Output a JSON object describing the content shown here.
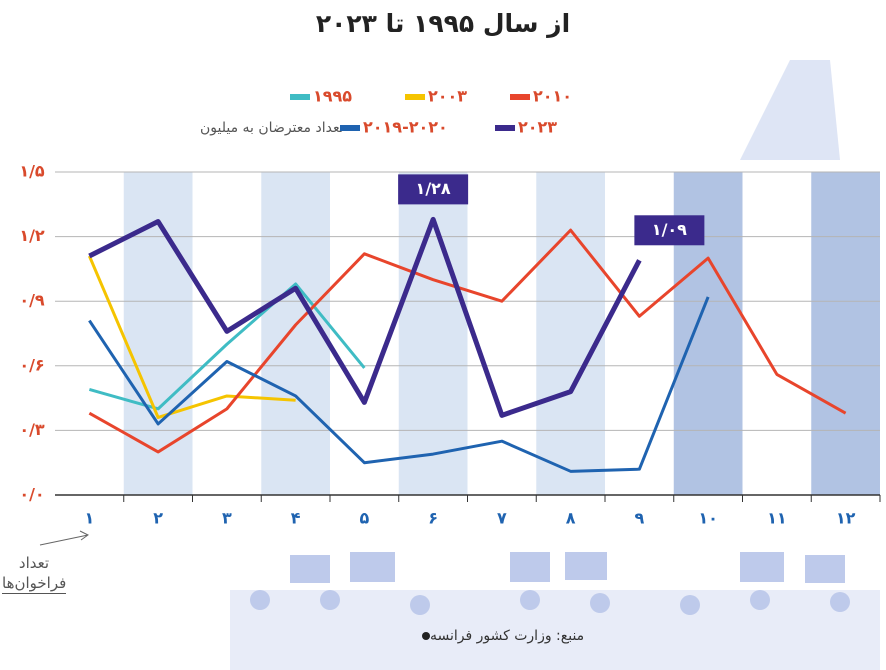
{
  "chart_data": {
    "type": "line",
    "title": "از سال ۱۹۹۵ تا ۲۰۲۳",
    "y_label": "تعداد معترضان به میلیون",
    "x_label": "تعداد فراخوان‌ها",
    "source": "منبع: وزارت کشور فرانسه",
    "categories": [
      "۱",
      "۲",
      "۳",
      "۴",
      "۵",
      "۶",
      "۷",
      "۸",
      "۹",
      "۱۰",
      "۱۱",
      "۱۲"
    ],
    "ylim": [
      0,
      1.5
    ],
    "yticks": [
      {
        "value": 0,
        "label": "۰/۰"
      },
      {
        "value": 0.3,
        "label": "۰/۳"
      },
      {
        "value": 0.6,
        "label": "۰/۶"
      },
      {
        "value": 0.9,
        "label": "۰/۹"
      },
      {
        "value": 1.2,
        "label": "۱/۲"
      },
      {
        "value": 1.5,
        "label": "۱/۵"
      }
    ],
    "grid": true,
    "series": [
      {
        "name": "۱۹۹۵",
        "color": "#3fbcc4",
        "values": [
          0.49,
          0.4,
          0.7,
          0.98,
          0.59,
          null,
          null,
          null,
          null,
          null,
          null,
          null
        ]
      },
      {
        "name": "۲۰۰۳",
        "color": "#f5c400",
        "values": [
          1.11,
          0.36,
          0.46,
          0.44,
          null,
          null,
          null,
          null,
          null,
          null,
          null,
          null
        ]
      },
      {
        "name": "۲۰۱۰",
        "color": "#e8452c",
        "values": [
          0.38,
          0.2,
          0.4,
          0.79,
          1.12,
          1.0,
          0.9,
          1.23,
          0.83,
          1.1,
          0.56,
          0.38
        ]
      },
      {
        "name": "۲۰۱۹-۲۰۲۰",
        "color": "#1f63b0",
        "values": [
          0.81,
          0.33,
          0.62,
          0.46,
          0.15,
          0.19,
          0.25,
          0.11,
          0.12,
          0.92,
          null,
          null
        ]
      },
      {
        "name": "۲۰۲۳",
        "color": "#3b2a8c",
        "values": [
          1.11,
          1.27,
          0.76,
          0.96,
          0.43,
          1.28,
          0.37,
          0.48,
          1.09,
          null,
          null,
          null
        ],
        "value_labels": [
          null,
          null,
          null,
          null,
          null,
          "۱/۲۸",
          null,
          null,
          "۱/۰۹",
          null,
          null,
          null
        ]
      }
    ]
  }
}
